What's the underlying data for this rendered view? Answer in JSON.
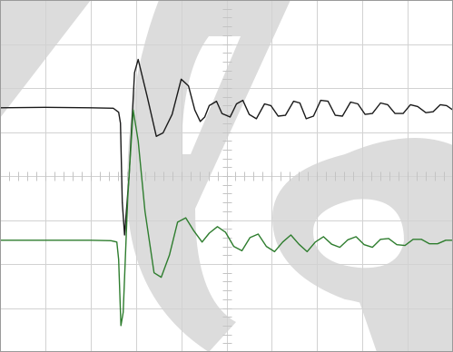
{
  "chart_data": {
    "type": "line",
    "title": "",
    "xlabel": "",
    "ylabel": "",
    "grid": true,
    "divisions": {
      "x": 10,
      "y": 8
    },
    "minor_ticks_per_division": 5,
    "axes": {
      "x_range": [
        0,
        10
      ],
      "y_range": [
        -4,
        4
      ]
    },
    "series": [
      {
        "color": "#1a1a1a",
        "x": [
          0,
          1.0,
          2.0,
          2.5,
          2.62,
          2.66,
          2.7,
          2.75,
          2.85,
          2.97,
          3.05,
          3.25,
          3.45,
          3.6,
          3.8,
          4.0,
          4.16,
          4.3,
          4.42,
          4.52,
          4.62,
          4.78,
          4.9,
          5.08,
          5.22,
          5.36,
          5.5,
          5.66,
          5.84,
          5.98,
          6.14,
          6.3,
          6.48,
          6.62,
          6.76,
          6.92,
          7.08,
          7.24,
          7.4,
          7.56,
          7.74,
          7.9,
          8.06,
          8.22,
          8.4,
          8.56,
          8.72,
          8.9,
          9.06,
          9.22,
          9.4,
          9.56,
          9.72,
          9.86,
          10.0
        ],
        "y": [
          1.55,
          1.56,
          1.55,
          1.54,
          1.45,
          1.2,
          -0.6,
          -1.34,
          0.0,
          2.35,
          2.65,
          1.8,
          0.9,
          0.98,
          1.4,
          2.2,
          2.05,
          1.5,
          1.24,
          1.34,
          1.6,
          1.7,
          1.42,
          1.34,
          1.64,
          1.72,
          1.4,
          1.3,
          1.64,
          1.6,
          1.36,
          1.38,
          1.7,
          1.66,
          1.3,
          1.36,
          1.72,
          1.7,
          1.38,
          1.36,
          1.68,
          1.64,
          1.4,
          1.42,
          1.66,
          1.62,
          1.42,
          1.42,
          1.62,
          1.58,
          1.44,
          1.46,
          1.62,
          1.6,
          1.5
        ]
      },
      {
        "color": "#2e7d2e",
        "x": [
          0,
          1.0,
          2.0,
          2.45,
          2.58,
          2.62,
          2.67,
          2.72,
          2.82,
          2.94,
          3.05,
          3.2,
          3.4,
          3.56,
          3.74,
          3.92,
          4.1,
          4.28,
          4.46,
          4.62,
          4.8,
          4.98,
          5.16,
          5.34,
          5.52,
          5.7,
          5.88,
          6.06,
          6.24,
          6.42,
          6.6,
          6.78,
          6.96,
          7.14,
          7.32,
          7.5,
          7.68,
          7.86,
          8.04,
          8.22,
          8.4,
          8.58,
          8.76,
          8.94,
          9.12,
          9.3,
          9.48,
          9.66,
          9.84,
          10.0
        ],
        "y": [
          -1.46,
          -1.46,
          -1.46,
          -1.47,
          -1.5,
          -1.9,
          -3.4,
          -3.1,
          -0.5,
          1.5,
          0.8,
          -0.8,
          -2.2,
          -2.3,
          -1.8,
          -1.05,
          -0.95,
          -1.25,
          -1.5,
          -1.3,
          -1.15,
          -1.28,
          -1.6,
          -1.7,
          -1.4,
          -1.32,
          -1.6,
          -1.72,
          -1.5,
          -1.34,
          -1.55,
          -1.72,
          -1.5,
          -1.38,
          -1.55,
          -1.62,
          -1.45,
          -1.38,
          -1.56,
          -1.62,
          -1.44,
          -1.42,
          -1.56,
          -1.58,
          -1.44,
          -1.44,
          -1.54,
          -1.54,
          -1.46,
          -1.46
        ]
      }
    ]
  },
  "watermark": {
    "glyphs": "eg",
    "color": "#dcdcdc"
  }
}
